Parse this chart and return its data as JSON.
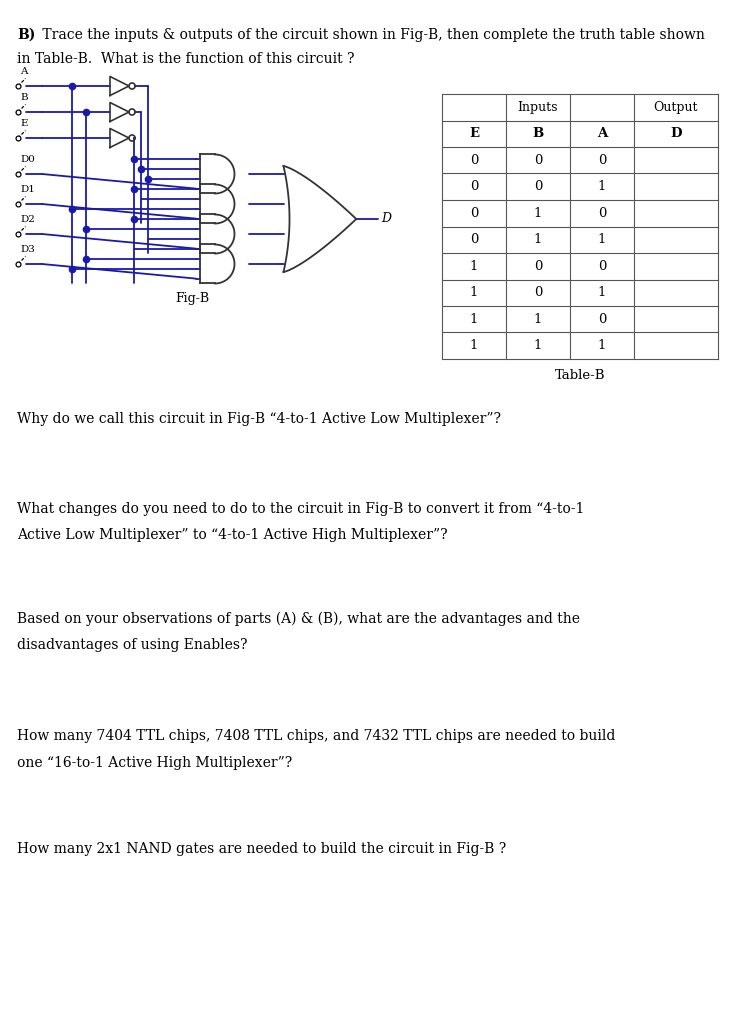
{
  "title_line1": "B)  Trace the inputs & outputs of the circuit shown in Fig-B, then complete the truth table shown",
  "title_line2": "in Table-B.  What is the function of this circuit ?",
  "q1": "Why do we call this circuit in Fig-B “4-to-1 Active Low Multiplexer”?",
  "q2_line1": "What changes do you need to do to the circuit in Fig-B to convert it from “4-to-1",
  "q2_line2": "Active Low Multiplexer” to “4-to-1 Active High Multiplexer”?",
  "q3_line1": "Based on your observations of parts (A) & (B), what are the advantages and the",
  "q3_line2": "disadvantages of using Enables?",
  "q4_line1": "How many 7404 TTL chips, 7408 TTL chips, and 7432 TTL chips are needed to build",
  "q4_line2": "one “16-to-1 Active High Multiplexer”?",
  "q5": "How many 2x1 NAND gates are needed to build the circuit in Fig-B ?",
  "table_rows": [
    [
      "0",
      "0",
      "0",
      ""
    ],
    [
      "0",
      "0",
      "1",
      ""
    ],
    [
      "0",
      "1",
      "0",
      ""
    ],
    [
      "0",
      "1",
      "1",
      ""
    ],
    [
      "1",
      "0",
      "0",
      ""
    ],
    [
      "1",
      "0",
      "1",
      ""
    ],
    [
      "1",
      "1",
      "0",
      ""
    ],
    [
      "1",
      "1",
      "1",
      ""
    ]
  ],
  "wire_color": "#1a1aaa",
  "gate_color": "#333333",
  "bg_color": "#ffffff",
  "text_color": "#000000"
}
